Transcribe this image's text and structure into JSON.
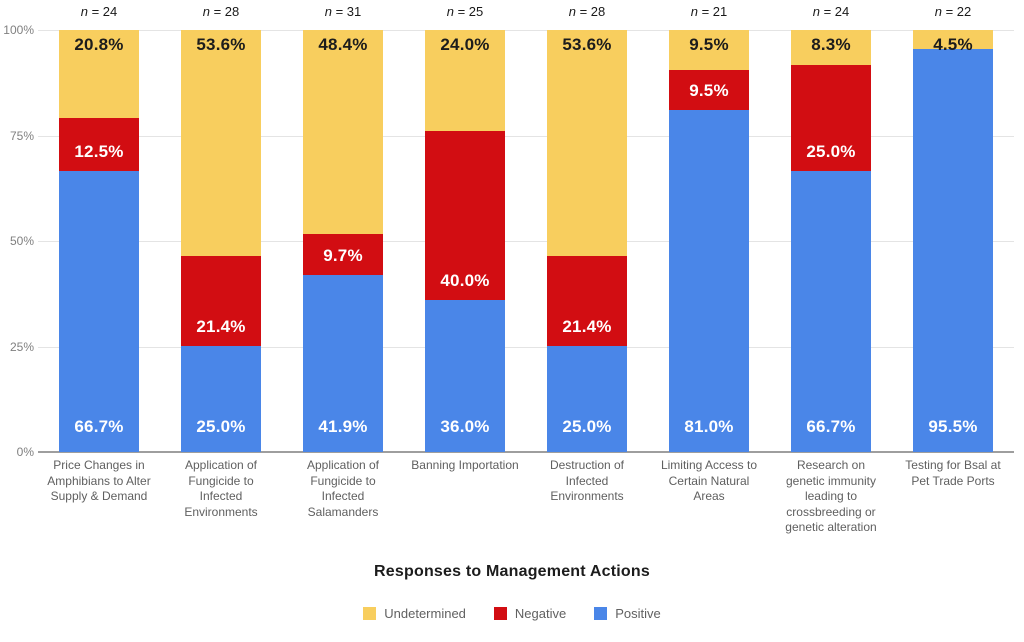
{
  "chart_data": {
    "type": "bar",
    "stacked": true,
    "stack_unit": "percent",
    "title": "Responses to Management Actions",
    "categories": [
      "Price Changes in Amphibians to Alter Supply & Demand",
      "Application of Fungicide to Infected Environments",
      "Application of Fungicide to Infected Salamanders",
      "Banning Importation",
      "Destruction of Infected Environments",
      "Limiting Access to Certain Natural Areas",
      "Research on genetic immunity leading to crossbreeding or genetic alteration",
      "Testing for Bsal at Pet Trade Ports"
    ],
    "n_labels": [
      "n = 24",
      "n = 28",
      "n = 31",
      "n = 25",
      "n = 28",
      "n = 21",
      "n = 24",
      "n = 22"
    ],
    "series": [
      {
        "name": "Undetermined",
        "color": "#F8CE5E",
        "label_color": "#1c1c1c",
        "values": [
          20.8,
          53.6,
          48.4,
          24.0,
          53.6,
          9.5,
          8.3,
          4.5
        ]
      },
      {
        "name": "Negative",
        "color": "#D20D12",
        "label_color": "#ffffff",
        "values": [
          12.5,
          21.4,
          9.7,
          40.0,
          21.4,
          9.5,
          25.0,
          0
        ]
      },
      {
        "name": "Positive",
        "color": "#4A86E8",
        "label_color": "#ffffff",
        "values": [
          66.7,
          25.0,
          41.9,
          36.0,
          25.0,
          81.0,
          66.7,
          95.5
        ]
      }
    ],
    "y_ticks": [
      "100%",
      "75%",
      "50%",
      "25%",
      "0%"
    ],
    "ylim": [
      0,
      100
    ],
    "grid": true,
    "legend_position": "bottom",
    "value_label_format": "one_decimal_percent"
  }
}
